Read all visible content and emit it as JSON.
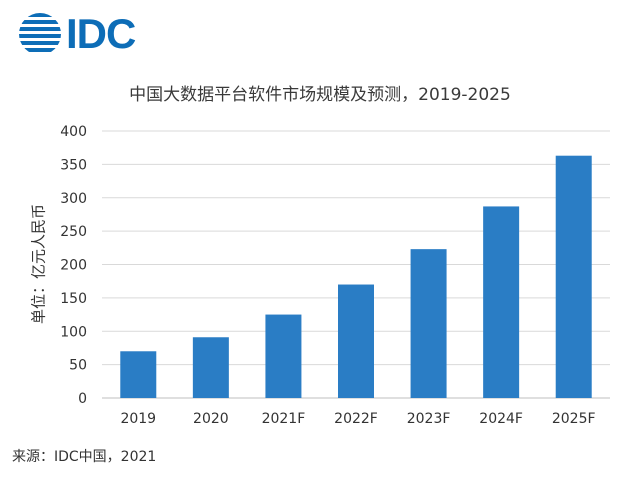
{
  "logo": {
    "text": "IDC",
    "color": "#0d6db7"
  },
  "chart_data": {
    "type": "bar",
    "title": "中国大数据平台软件市场规模及预测，2019-2025",
    "ylabel": "单位：亿元人民币",
    "xlabel": "",
    "categories": [
      "2019",
      "2020",
      "2021F",
      "2022F",
      "2023F",
      "2024F",
      "2025F"
    ],
    "values": [
      70,
      91,
      125,
      170,
      223,
      287,
      363
    ],
    "ylim": [
      0,
      400
    ],
    "yticks": [
      0,
      50,
      100,
      150,
      200,
      250,
      300,
      350,
      400
    ],
    "grid": true,
    "bar_color": "#2a7dc5",
    "grid_color": "#d9d9d9"
  },
  "source": "来源：IDC中国，2021"
}
